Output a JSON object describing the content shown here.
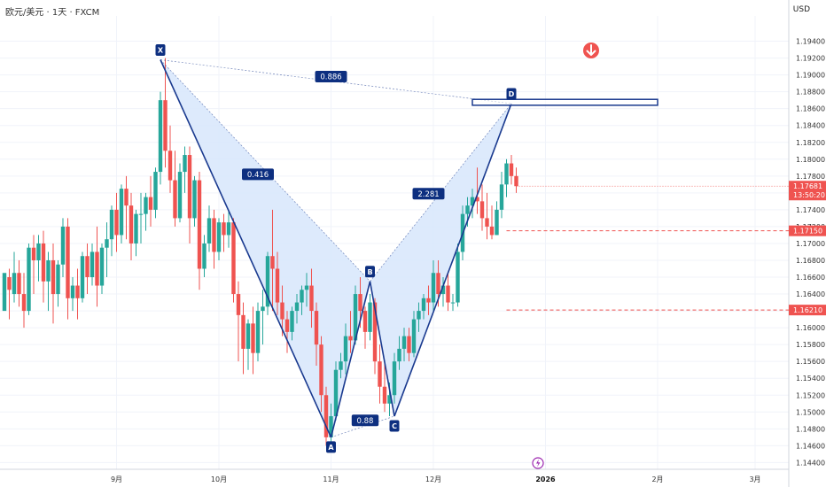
{
  "symbol": "欧元/美元 · 1天 · FXCM",
  "currency": "USD",
  "chart_data": {
    "type": "candlestick",
    "y_ticks": [
      1.144,
      1.146,
      1.148,
      1.15,
      1.152,
      1.154,
      1.156,
      1.158,
      1.16,
      1.162,
      1.164,
      1.166,
      1.168,
      1.17,
      1.172,
      1.174,
      1.176,
      1.178,
      1.18,
      1.182,
      1.184,
      1.186,
      1.188,
      1.19,
      1.192,
      1.194
    ],
    "y_tick_labels": [
      "1.14400",
      "1.14600",
      "1.14800",
      "1.15000",
      "1.15200",
      "1.15400",
      "1.15600",
      "1.15800",
      "1.16000",
      "1.16200",
      "1.16400",
      "1.16600",
      "1.16800",
      "1.17000",
      "1.17200",
      "1.17400",
      "1.17600",
      "1.17800",
      "1.18000",
      "1.18200",
      "1.18400",
      "1.18600",
      "1.18800",
      "1.19000",
      "1.19200",
      "1.19400"
    ],
    "ylim": [
      1.1432,
      1.197
    ],
    "x_ticks": [
      {
        "label": "9月",
        "bar": 23,
        "bold": false
      },
      {
        "label": "10月",
        "bar": 44,
        "bold": false
      },
      {
        "label": "11月",
        "bar": 67,
        "bold": false
      },
      {
        "label": "12月",
        "bar": 88,
        "bold": false
      },
      {
        "label": "2026",
        "bar": 111,
        "bold": true
      },
      {
        "label": "2月",
        "bar": 134,
        "bold": false
      },
      {
        "label": "3月",
        "bar": 154,
        "bold": false
      }
    ],
    "candles": [
      [
        1.162,
        1.166,
        1.1665,
        1.165
      ],
      [
        1.166,
        1.167,
        1.1645,
        1.161
      ],
      [
        1.164,
        1.169,
        1.1665,
        1.163
      ],
      [
        1.1665,
        1.168,
        1.164,
        1.1625
      ],
      [
        1.164,
        1.1665,
        1.162,
        1.16
      ],
      [
        1.162,
        1.17,
        1.1695,
        1.1615
      ],
      [
        1.1695,
        1.171,
        1.168,
        1.164
      ],
      [
        1.168,
        1.171,
        1.17,
        1.1655
      ],
      [
        1.17,
        1.1715,
        1.1655,
        1.163
      ],
      [
        1.1655,
        1.169,
        1.168,
        1.162
      ],
      [
        1.168,
        1.17,
        1.164,
        1.1605
      ],
      [
        1.164,
        1.168,
        1.1675,
        1.1625
      ],
      [
        1.1675,
        1.173,
        1.172,
        1.166
      ],
      [
        1.172,
        1.173,
        1.1635,
        1.161
      ],
      [
        1.1635,
        1.166,
        1.165,
        1.162
      ],
      [
        1.165,
        1.167,
        1.1635,
        1.161
      ],
      [
        1.1635,
        1.169,
        1.1685,
        1.163
      ],
      [
        1.1685,
        1.17,
        1.166,
        1.164
      ],
      [
        1.166,
        1.17,
        1.169,
        1.165
      ],
      [
        1.169,
        1.172,
        1.165,
        1.1625
      ],
      [
        1.165,
        1.17,
        1.1695,
        1.164
      ],
      [
        1.1695,
        1.1725,
        1.1705,
        1.166
      ],
      [
        1.1705,
        1.1745,
        1.174,
        1.1685
      ],
      [
        1.174,
        1.176,
        1.171,
        1.169
      ],
      [
        1.171,
        1.177,
        1.1765,
        1.17
      ],
      [
        1.1765,
        1.178,
        1.1745,
        1.1705
      ],
      [
        1.1745,
        1.176,
        1.17,
        1.168
      ],
      [
        1.17,
        1.174,
        1.1735,
        1.1685
      ],
      [
        1.1735,
        1.176,
        1.1735,
        1.17
      ],
      [
        1.1735,
        1.176,
        1.1755,
        1.1715
      ],
      [
        1.1755,
        1.178,
        1.174,
        1.172
      ],
      [
        1.174,
        1.179,
        1.1785,
        1.173
      ],
      [
        1.1785,
        1.188,
        1.187,
        1.177
      ],
      [
        1.187,
        1.192,
        1.181,
        1.179
      ],
      [
        1.181,
        1.184,
        1.1775,
        1.176
      ],
      [
        1.1775,
        1.181,
        1.173,
        1.172
      ],
      [
        1.173,
        1.1795,
        1.1785,
        1.1725
      ],
      [
        1.1785,
        1.1815,
        1.1805,
        1.176
      ],
      [
        1.1805,
        1.1815,
        1.173,
        1.17
      ],
      [
        1.173,
        1.178,
        1.1775,
        1.172
      ],
      [
        1.1775,
        1.1785,
        1.167,
        1.1645
      ],
      [
        1.167,
        1.171,
        1.17,
        1.166
      ],
      [
        1.17,
        1.1745,
        1.173,
        1.169
      ],
      [
        1.173,
        1.174,
        1.169,
        1.167
      ],
      [
        1.169,
        1.173,
        1.1725,
        1.168
      ],
      [
        1.1725,
        1.1735,
        1.171,
        1.169
      ],
      [
        1.171,
        1.174,
        1.1725,
        1.1695
      ],
      [
        1.1725,
        1.173,
        1.164,
        1.163
      ],
      [
        1.164,
        1.1655,
        1.1615,
        1.156
      ],
      [
        1.1615,
        1.163,
        1.1575,
        1.1545
      ],
      [
        1.1575,
        1.161,
        1.1605,
        1.155
      ],
      [
        1.1605,
        1.1625,
        1.157,
        1.1545
      ],
      [
        1.157,
        1.163,
        1.162,
        1.156
      ],
      [
        1.162,
        1.1645,
        1.1625,
        1.158
      ],
      [
        1.1625,
        1.169,
        1.1685,
        1.1615
      ],
      [
        1.1685,
        1.174,
        1.167,
        1.162
      ],
      [
        1.167,
        1.169,
        1.163,
        1.1615
      ],
      [
        1.163,
        1.165,
        1.161,
        1.159
      ],
      [
        1.161,
        1.162,
        1.1595,
        1.157
      ],
      [
        1.1595,
        1.1625,
        1.162,
        1.1585
      ],
      [
        1.162,
        1.164,
        1.163,
        1.1605
      ],
      [
        1.163,
        1.165,
        1.1645,
        1.1615
      ],
      [
        1.1645,
        1.1665,
        1.165,
        1.1625
      ],
      [
        1.165,
        1.167,
        1.162,
        1.16
      ],
      [
        1.162,
        1.163,
        1.158,
        1.1555
      ],
      [
        1.158,
        1.159,
        1.152,
        1.15
      ],
      [
        1.152,
        1.153,
        1.147,
        1.146
      ],
      [
        1.147,
        1.151,
        1.1495,
        1.1465
      ],
      [
        1.1495,
        1.156,
        1.155,
        1.149
      ],
      [
        1.155,
        1.157,
        1.156,
        1.154
      ],
      [
        1.156,
        1.1605,
        1.159,
        1.1545
      ],
      [
        1.159,
        1.162,
        1.1585,
        1.157
      ],
      [
        1.1585,
        1.165,
        1.164,
        1.158
      ],
      [
        1.164,
        1.166,
        1.162,
        1.16
      ],
      [
        1.162,
        1.1625,
        1.1595,
        1.1575
      ],
      [
        1.1595,
        1.164,
        1.163,
        1.1585
      ],
      [
        1.163,
        1.1635,
        1.156,
        1.1545
      ],
      [
        1.156,
        1.158,
        1.153,
        1.151
      ],
      [
        1.153,
        1.156,
        1.151,
        1.15
      ],
      [
        1.151,
        1.1535,
        1.152,
        1.1495
      ],
      [
        1.152,
        1.157,
        1.156,
        1.151
      ],
      [
        1.156,
        1.159,
        1.1575,
        1.155
      ],
      [
        1.1575,
        1.16,
        1.159,
        1.156
      ],
      [
        1.159,
        1.16,
        1.157,
        1.156
      ],
      [
        1.157,
        1.162,
        1.161,
        1.1565
      ],
      [
        1.161,
        1.163,
        1.162,
        1.1595
      ],
      [
        1.162,
        1.164,
        1.1635,
        1.161
      ],
      [
        1.1635,
        1.165,
        1.163,
        1.1615
      ],
      [
        1.163,
        1.168,
        1.1665,
        1.162
      ],
      [
        1.1665,
        1.168,
        1.164,
        1.1625
      ],
      [
        1.164,
        1.166,
        1.165,
        1.1625
      ],
      [
        1.165,
        1.1665,
        1.163,
        1.162
      ],
      [
        1.163,
        1.164,
        1.163,
        1.162
      ],
      [
        1.163,
        1.17,
        1.169,
        1.1625
      ],
      [
        1.169,
        1.1745,
        1.1735,
        1.168
      ],
      [
        1.1735,
        1.1755,
        1.1745,
        1.172
      ],
      [
        1.1745,
        1.1765,
        1.1755,
        1.173
      ],
      [
        1.1755,
        1.179,
        1.175,
        1.1735
      ],
      [
        1.175,
        1.177,
        1.173,
        1.1715
      ],
      [
        1.173,
        1.176,
        1.172,
        1.1705
      ],
      [
        1.172,
        1.1745,
        1.171,
        1.1705
      ],
      [
        1.171,
        1.175,
        1.174,
        1.171
      ],
      [
        1.174,
        1.1785,
        1.177,
        1.173
      ],
      [
        1.177,
        1.18,
        1.1795,
        1.1755
      ],
      [
        1.1795,
        1.1805,
        1.178,
        1.177
      ],
      [
        1.178,
        1.179,
        1.1768,
        1.176
      ]
    ]
  },
  "harmonic": {
    "points": [
      {
        "label": "X",
        "bar": 32,
        "price": 1.1918
      },
      {
        "label": "A",
        "bar": 67,
        "price": 1.147
      },
      {
        "label": "B",
        "bar": 75,
        "price": 1.1655
      },
      {
        "label": "C",
        "bar": 80,
        "price": 1.1495
      },
      {
        "label": "D",
        "bar": 104,
        "price": 1.1866
      }
    ],
    "ratios": [
      {
        "label": "0.416",
        "bar": 52,
        "price": 1.1782
      },
      {
        "label": "0.886",
        "bar": 67,
        "price": 1.1898
      },
      {
        "label": "0.88",
        "bar": 74,
        "price": 1.149
      },
      {
        "label": "2.281",
        "bar": 87,
        "price": 1.1759
      }
    ],
    "zone": {
      "from_bar": 96,
      "to_bar": 134,
      "top": 1.1871,
      "bottom": 1.1864
    }
  },
  "levels": [
    {
      "price": 1.1715,
      "label": "1.17150",
      "from_bar": 103
    },
    {
      "price": 1.1621,
      "label": "1.16210",
      "from_bar": 103
    }
  ],
  "current_price": {
    "price": 1.1768,
    "label": "1.17681",
    "countdown": "13:50:20"
  },
  "colors": {
    "up": "#26a69a",
    "down": "#ef5350",
    "pattern_line": "#1a3a8f",
    "pattern_fill": "#d7e6fb",
    "label_bg": "#0d2f80",
    "level": "#ef5350",
    "signal": "#ef5350",
    "grid": "#f0f3fa",
    "bolt": "#9c27b0"
  },
  "icons": {
    "signal": "arrow-down-circle-icon",
    "event": "lightning-icon"
  }
}
